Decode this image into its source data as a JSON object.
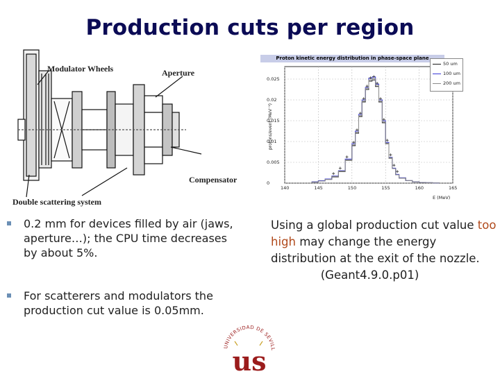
{
  "slide": {
    "title": "Production cuts per region"
  },
  "diagram": {
    "labels": {
      "modulator_wheels": "Modulator Wheels",
      "aperture": "Aperture",
      "compensator": "Compensator",
      "double_scattering": "Double scattering system"
    }
  },
  "plot": {
    "title": "Proton kinetic energy distribution in phase-space plane",
    "ylabel": "protons/event (MeV⁻¹)",
    "xlabel": "E (MeV)",
    "y_ticks": [
      "0",
      "0.005",
      "0.01",
      "0.015",
      "0.02",
      "0.025"
    ],
    "x_ticks": [
      "140",
      "145",
      "150",
      "155",
      "160",
      "165"
    ],
    "legend": [
      "50 um",
      "100 um",
      "200 um"
    ]
  },
  "chart_data": {
    "type": "line",
    "title": "Proton kinetic energy distribution in phase-space plane",
    "xlabel": "E (MeV)",
    "ylabel": "protons/event (MeV⁻¹)",
    "xlim": [
      140,
      165
    ],
    "ylim": [
      0,
      0.028
    ],
    "grid": true,
    "legend_position": "top-right",
    "x": [
      144,
      145,
      146,
      147,
      148,
      149,
      150,
      150.5,
      151,
      151.5,
      152,
      152.5,
      153,
      153.5,
      154,
      154.5,
      155,
      155.5,
      156,
      156.5,
      157,
      158,
      159,
      160,
      161,
      162
    ],
    "series": [
      {
        "name": "50 um",
        "color": "#1a1a1a",
        "values": [
          0.0003,
          0.0005,
          0.0009,
          0.0015,
          0.0028,
          0.0055,
          0.009,
          0.012,
          0.016,
          0.0195,
          0.0225,
          0.0245,
          0.0248,
          0.0232,
          0.0195,
          0.0145,
          0.0095,
          0.006,
          0.0035,
          0.002,
          0.0012,
          0.0006,
          0.0003,
          0.00015,
          0.0001,
          5e-05
        ]
      },
      {
        "name": "100 um",
        "color": "#3838d8",
        "values": [
          0.0003,
          0.0006,
          0.001,
          0.0017,
          0.003,
          0.0058,
          0.0095,
          0.0125,
          0.0165,
          0.02,
          0.023,
          0.0252,
          0.0255,
          0.0238,
          0.02,
          0.015,
          0.0098,
          0.0062,
          0.0036,
          0.0021,
          0.0013,
          0.0006,
          0.0003,
          0.00015,
          0.0001,
          5e-05
        ]
      },
      {
        "name": "200 um",
        "color": "#8a8a8a",
        "values": [
          0.0002,
          0.0005,
          0.0009,
          0.0016,
          0.0029,
          0.0056,
          0.0092,
          0.0122,
          0.0162,
          0.0197,
          0.0228,
          0.0248,
          0.0251,
          0.0235,
          0.0197,
          0.0147,
          0.0096,
          0.0061,
          0.0035,
          0.002,
          0.0012,
          0.0006,
          0.0003,
          0.00015,
          0.0001,
          5e-05
        ]
      }
    ]
  },
  "bullets": [
    {
      "text": "0.2 mm for devices filled by air (jaws, aperture…); the CPU time decreases by about 5%."
    },
    {
      "text": "For scatterers and modulators the production cut value is 0.05mm."
    }
  ],
  "right_text": {
    "part1": "Using a global production cut value ",
    "highlight": "too high",
    "part2": " may change the energy distribution at the exit of the nozzle.",
    "reference": "(Geant4.9.0.p01)"
  },
  "logo": {
    "arc_text": "UNIVERSIDAD DE SEVILLA",
    "monogram": "us",
    "colors": {
      "primary": "#9b1c1c",
      "secondary": "#c9a227"
    }
  },
  "colors": {
    "title": "#0b0b55",
    "highlight": "#b0491b",
    "bullet_marker": "#6b8fb5",
    "plot_title_bg": "#c8cde8"
  }
}
